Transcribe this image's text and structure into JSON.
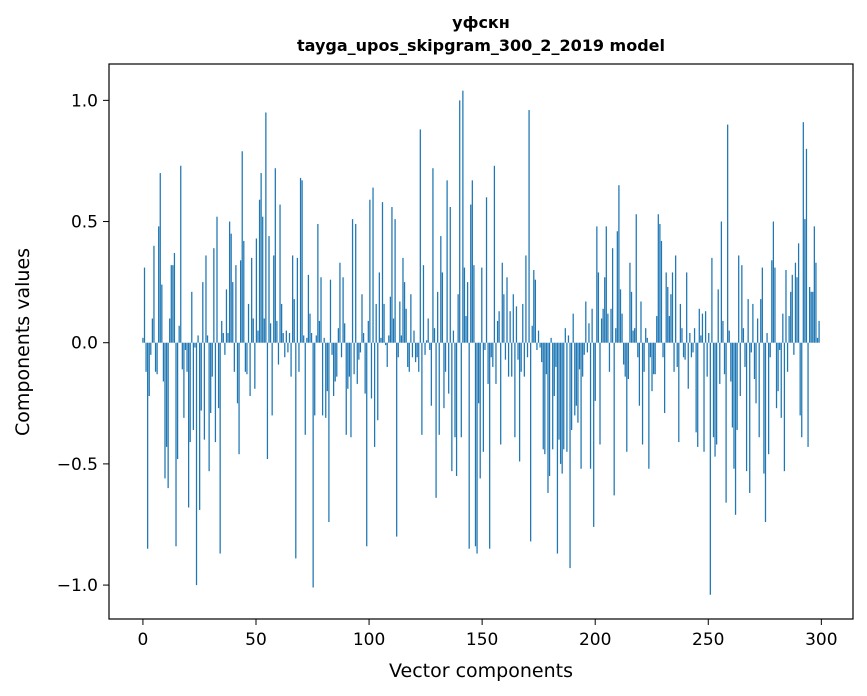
{
  "chart_data": {
    "type": "bar",
    "title_line1": "уфскн",
    "title_line2": "tayga_upos_skipgram_300_2_2019 model",
    "xlabel": "Vector components",
    "ylabel": "Components values",
    "xlim": [
      -15,
      314
    ],
    "ylim": [
      -1.14,
      1.15
    ],
    "xticks": [
      0,
      50,
      100,
      150,
      200,
      250,
      300
    ],
    "xtick_labels": [
      "0",
      "50",
      "100",
      "150",
      "200",
      "250",
      "300"
    ],
    "yticks": [
      -1.0,
      -0.5,
      0.0,
      0.5,
      1.0
    ],
    "ytick_labels": [
      "−1.0",
      "−0.5",
      "0.0",
      "0.5",
      "1.0"
    ],
    "bar_color": "#1f77b4",
    "values": [
      0.02,
      0.31,
      -0.12,
      -0.85,
      -0.22,
      -0.05,
      0.1,
      0.4,
      -0.12,
      -0.13,
      0.48,
      0.7,
      0.24,
      -0.16,
      -0.56,
      -0.43,
      -0.6,
      0.1,
      0.32,
      0.32,
      0.37,
      -0.84,
      -0.48,
      0.07,
      0.73,
      -0.11,
      -0.31,
      -0.03,
      -0.12,
      -0.68,
      -0.41,
      0.21,
      -0.36,
      -0.02,
      -1.0,
      0.03,
      -0.69,
      -0.28,
      0.25,
      -0.4,
      0.36,
      0.03,
      -0.53,
      -0.29,
      -0.14,
      0.39,
      -0.41,
      0.52,
      -0.27,
      -0.87,
      0.09,
      0.04,
      -0.05,
      0.22,
      0.04,
      0.5,
      0.45,
      0.25,
      -0.12,
      0.32,
      -0.25,
      -0.46,
      0.34,
      0.79,
      0.42,
      -0.12,
      -0.13,
      0.16,
      -0.22,
      0.35,
      0.1,
      -0.19,
      0.43,
      0.05,
      0.59,
      0.7,
      0.52,
      0.1,
      0.95,
      -0.48,
      0.44,
      0.08,
      -0.3,
      0.36,
      0.72,
      0.09,
      -0.09,
      0.57,
      0.16,
      0.04,
      -0.06,
      0.05,
      -0.04,
      0.04,
      -0.14,
      0.36,
      0.18,
      -0.89,
      0.35,
      -0.12,
      0.68,
      0.67,
      0.03,
      -0.38,
      0.02,
      0.28,
      0.12,
      0.04,
      -1.01,
      -0.3,
      0.03,
      0.49,
      0.09,
      0.27,
      -0.3,
      0.02,
      -0.31,
      -0.2,
      -0.74,
      0.26,
      -0.05,
      -0.22,
      -0.16,
      -0.14,
      0.06,
      0.33,
      -0.06,
      0.27,
      0.08,
      -0.38,
      -0.19,
      -0.14,
      -0.39,
      0.51,
      -0.13,
      0.49,
      -0.17,
      -0.07,
      -0.04,
      0.2,
      0.04,
      -0.21,
      -0.84,
      0.09,
      0.59,
      -0.23,
      0.64,
      -0.43,
      0.16,
      -0.32,
      0.29,
      0.02,
      0.58,
      0.16,
      -0.01,
      -0.1,
      0.03,
      0.19,
      0.56,
      0.1,
      0.51,
      -0.8,
      -0.06,
      0.17,
      0.03,
      0.35,
      0.25,
      0.14,
      -0.1,
      -0.12,
      0.2,
      -0.06,
      0.05,
      -0.08,
      -0.06,
      -0.12,
      0.88,
      -0.38,
      0.32,
      -0.05,
      0.01,
      0.1,
      -0.03,
      -0.26,
      0.72,
      0.06,
      -0.64,
      0.21,
      -0.38,
      0.44,
      0.29,
      -0.27,
      -0.12,
      0.67,
      -0.21,
      0.56,
      -0.53,
      0.05,
      -0.39,
      -0.55,
      0.2,
      1.0,
      -0.39,
      1.04,
      0.31,
      0.11,
      0.25,
      -0.85,
      0.57,
      0.67,
      0.32,
      -0.84,
      -0.87,
      -0.25,
      -0.56,
      0.31,
      -0.45,
      -0.03,
      0.6,
      -0.17,
      -0.85,
      -0.06,
      -0.1,
      0.73,
      -0.17,
      0.09,
      0.13,
      -0.42,
      0.33,
      0.2,
      -0.07,
      0.27,
      -0.14,
      0.13,
      -0.14,
      0.2,
      -0.39,
      0.15,
      -0.07,
      -0.49,
      -0.12,
      0.16,
      -0.14,
      0.36,
      -0.06,
      0.96,
      -0.82,
      0.07,
      0.3,
      0.26,
      -0.03,
      0.05,
      -0.02,
      -0.08,
      -0.44,
      -0.46,
      -0.13,
      -0.62,
      -0.55,
      0.02,
      -0.44,
      -0.22,
      -0.1,
      -0.87,
      -0.4,
      -0.5,
      -0.54,
      -0.44,
      0.06,
      -0.45,
      0.03,
      -0.93,
      -0.36,
      0.12,
      -0.3,
      -0.26,
      -0.33,
      -0.11,
      -0.52,
      -0.14,
      -0.05,
      0.17,
      -0.04,
      0.08,
      -0.52,
      0.14,
      -0.76,
      -0.24,
      0.48,
      0.29,
      -0.42,
      0.1,
      0.14,
      0.27,
      0.48,
      0.12,
      -0.12,
      0.14,
      0.39,
      -0.63,
      0.06,
      0.46,
      0.65,
      0.22,
      0.12,
      -0.09,
      -0.14,
      -0.45,
      -0.15,
      0.33,
      0.21,
      0.05,
      0.06,
      0.53,
      -0.06,
      -0.26,
      0.17,
      -0.42,
      -0.12,
      0.06,
      0.02,
      -0.52,
      -0.06,
      -0.2,
      -0.13,
      -0.13,
      0.11,
      0.53,
      0.49,
      0.42,
      -0.06,
      -0.29,
      0.29,
      0.23,
      0.11,
      0.2,
      0.29,
      -0.12,
      0.36,
      -0.1,
      -0.41,
      0.16,
      0.06,
      -0.06,
      -0.07,
      0.29,
      -0.19,
      0.04,
      -0.06,
      -0.04,
      0.06,
      -0.37,
      -0.43,
      0.14,
      0.03,
      0.12,
      -0.45,
      0.13,
      -0.14,
      0.04,
      -1.04,
      0.35,
      -0.39,
      -0.47,
      -0.42,
      0.22,
      -0.17,
      0.5,
      0.09,
      -0.13,
      -0.66,
      0.9,
      0.05,
      -0.16,
      -0.35,
      -0.52,
      -0.71,
      -0.36,
      0.36,
      -0.22,
      0.32,
      0.06,
      -0.1,
      -0.53,
      0.18,
      -0.62,
      -0.04,
      0.16,
      -0.15,
      -0.25,
      0.1,
      -0.39,
      0.18,
      0.31,
      -0.54,
      -0.74,
      0.04,
      -0.46,
      -0.06,
      0.34,
      0.5,
      0.31,
      -0.27,
      -0.2,
      -0.03,
      -0.31,
      0.12,
      -0.53,
      0.3,
      -0.12,
      0.11,
      0.21,
      0.28,
      -0.05,
      0.33,
      0.27,
      0.41,
      -0.3,
      -0.39,
      0.91,
      0.51,
      0.8,
      -0.43,
      0.23,
      0.21,
      0.21,
      0.48,
      0.33,
      0.02,
      0.09
    ]
  }
}
